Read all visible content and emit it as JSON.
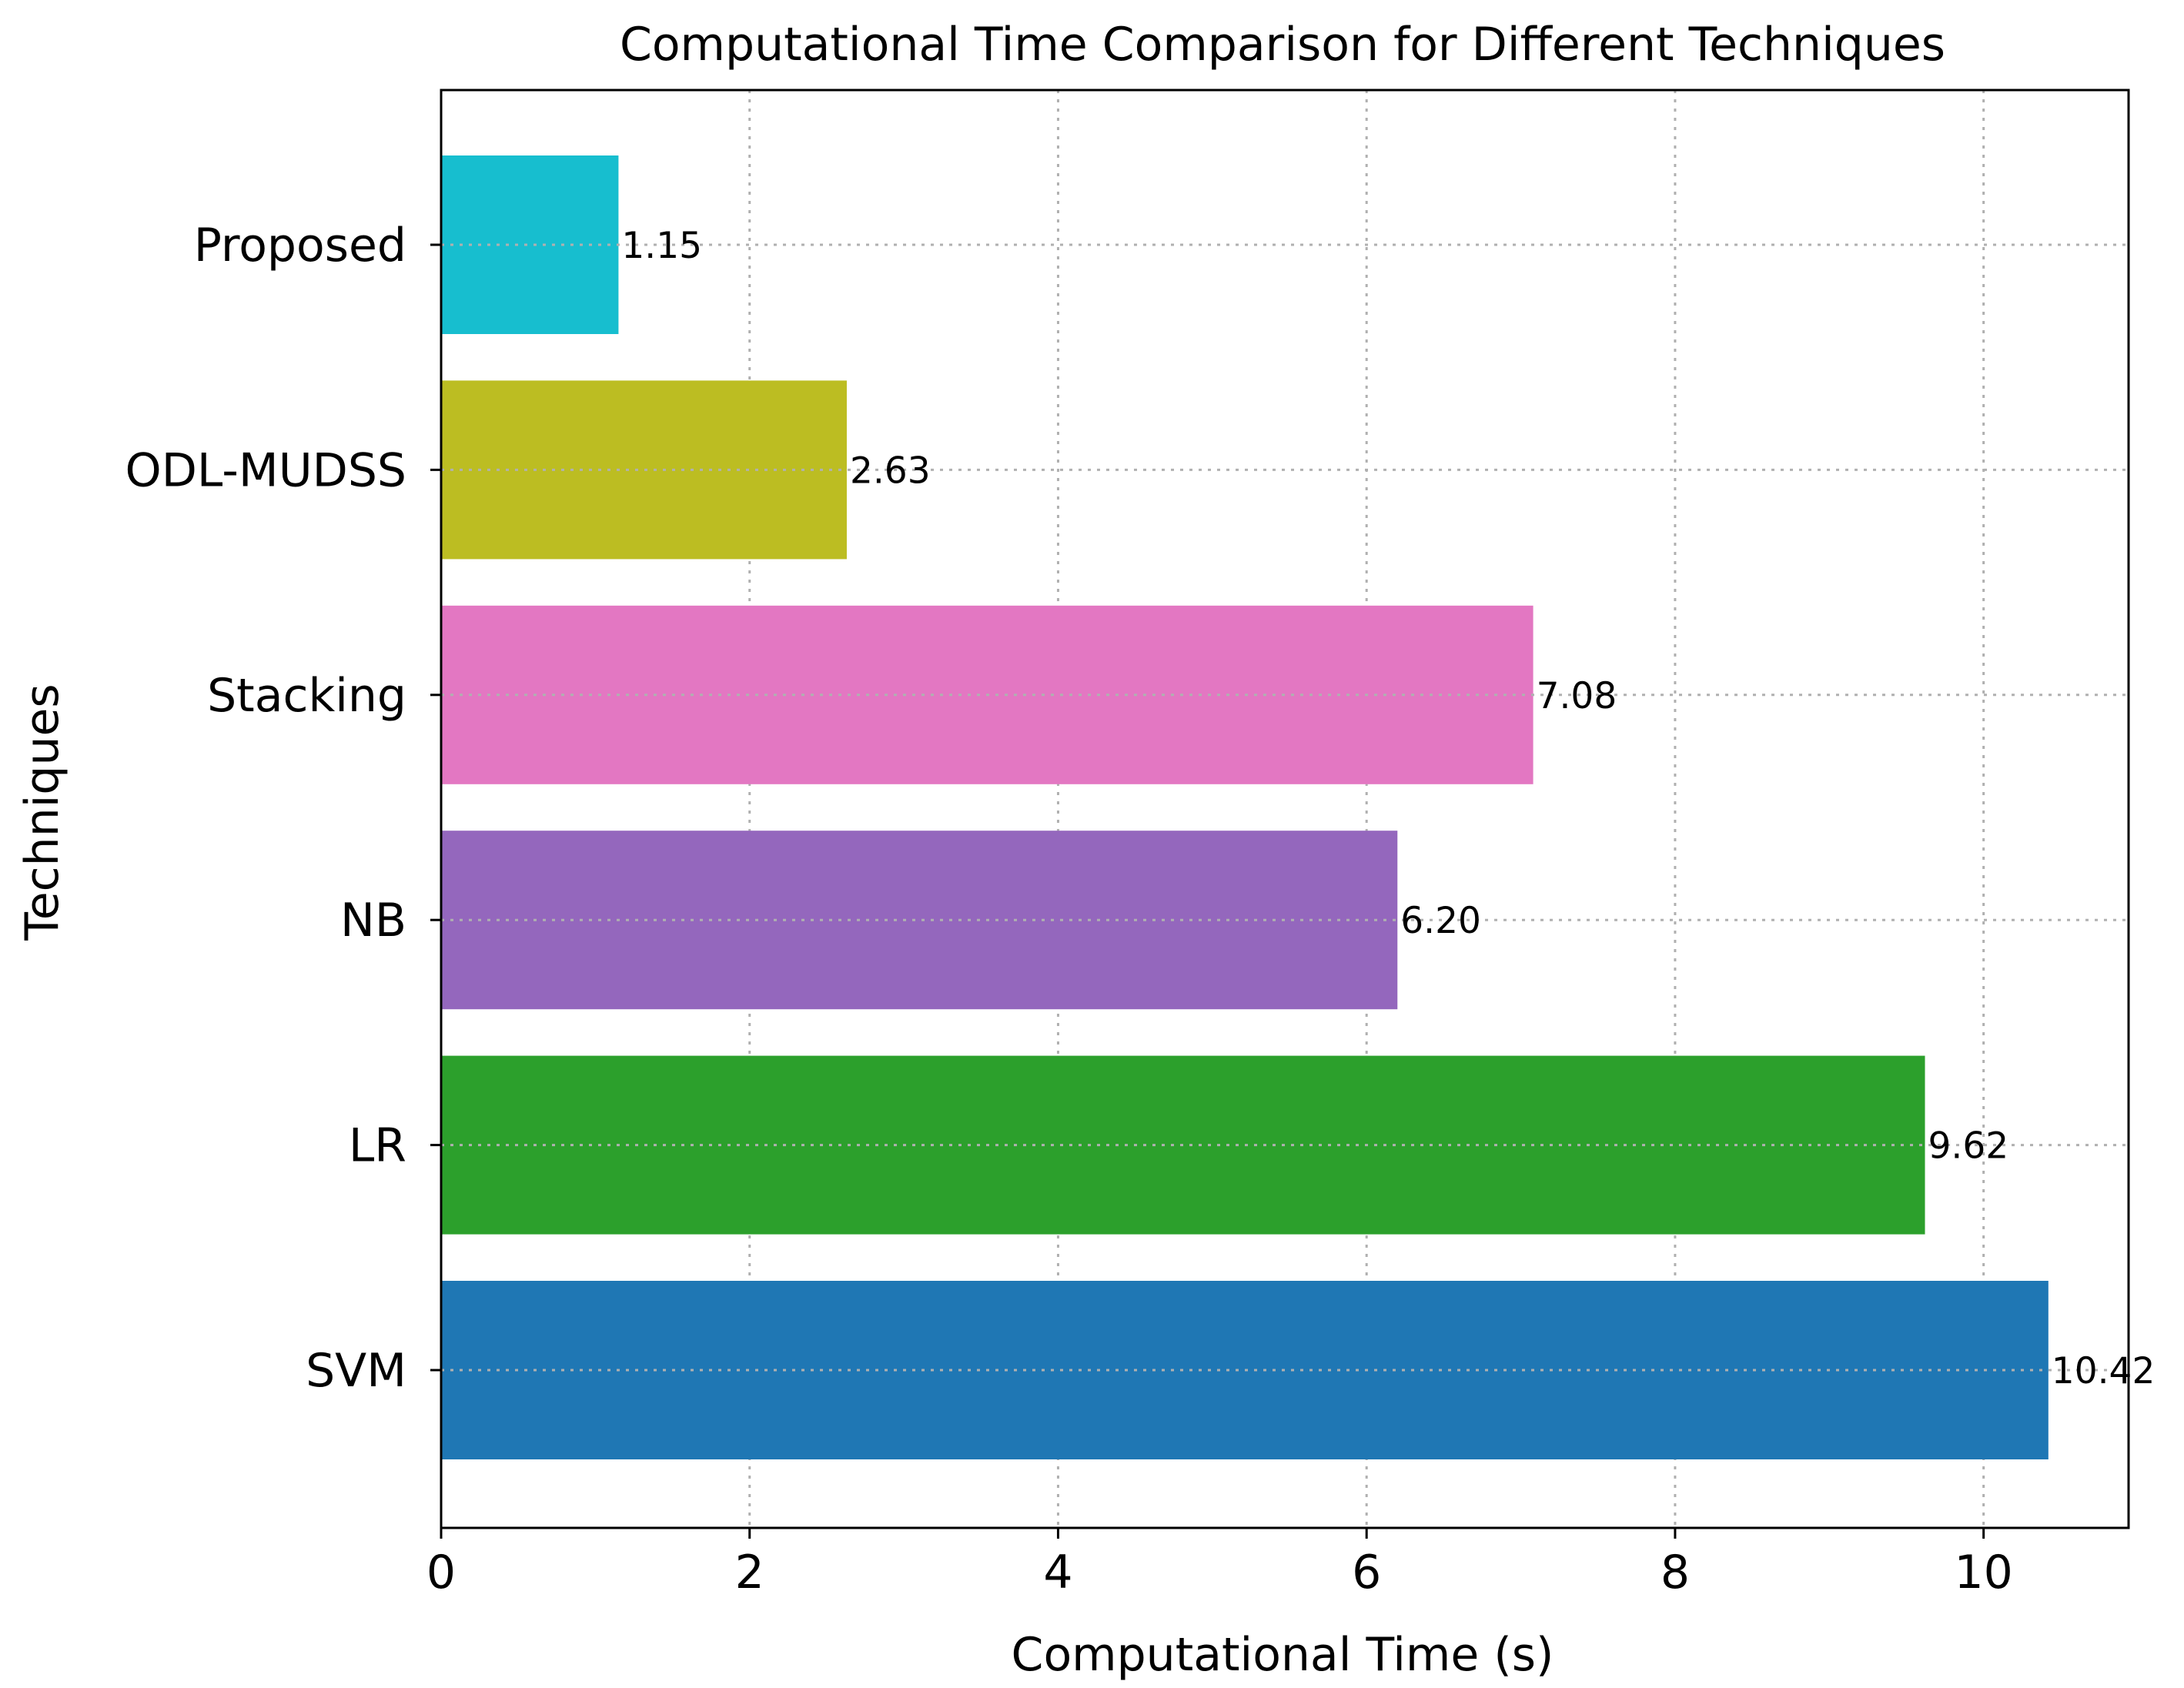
{
  "chart_data": {
    "type": "bar",
    "orientation": "horizontal",
    "title": "Computational Time Comparison for Different Techniques",
    "xlabel": "Computational Time (s)",
    "ylabel": "Techniques",
    "categories": [
      "SVM",
      "LR",
      "NB",
      "Stacking",
      "ODL-MUDSS",
      "Proposed"
    ],
    "values": [
      10.42,
      9.62,
      6.2,
      7.08,
      2.63,
      1.15
    ],
    "value_labels": [
      "10.42",
      "9.62",
      "6.20",
      "7.08",
      "2.63",
      "1.15"
    ],
    "colors": [
      "#1f77b4",
      "#2ca02c",
      "#9467bd",
      "#e377c2",
      "#bcbd22",
      "#17becf"
    ],
    "xlim": [
      0,
      10.94
    ],
    "xticks": [
      0,
      2,
      4,
      6,
      8,
      10
    ],
    "xtick_labels": [
      "0",
      "2",
      "4",
      "6",
      "8",
      "10"
    ],
    "grid": true,
    "grid_style": "dotted"
  }
}
